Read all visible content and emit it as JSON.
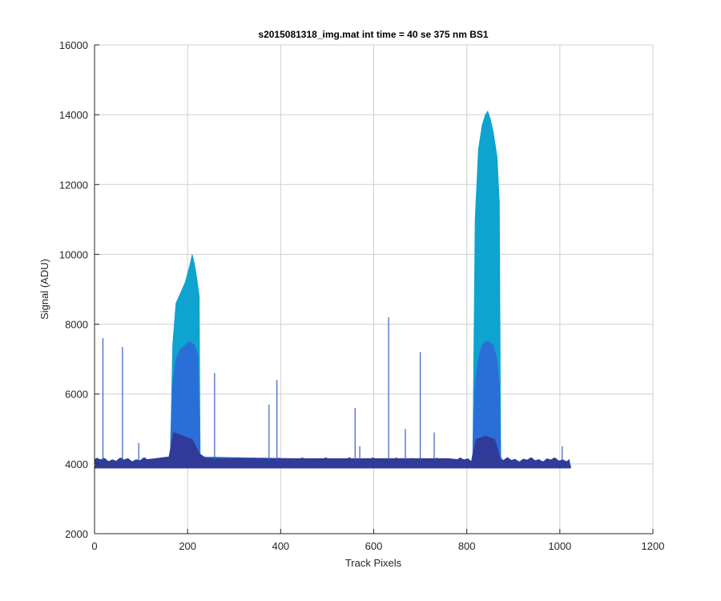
{
  "chart_data": {
    "type": "line",
    "title": "s2015081318_img.mat int time = 40 se  375 nm BS1",
    "xlabel": "Track Pixels",
    "ylabel": "Signal (ADU)",
    "xlim": [
      0,
      1200
    ],
    "ylim": [
      2000,
      16000
    ],
    "xticks": [
      0,
      200,
      400,
      600,
      800,
      1000,
      1200
    ],
    "yticks": [
      2000,
      4000,
      6000,
      8000,
      10000,
      12000,
      14000,
      16000
    ],
    "grid": true,
    "colors": {
      "upper": "#0fa3cf",
      "middle": "#2a6fd8",
      "lower": "#2f3a9a",
      "base": "#303c96"
    },
    "series": [
      {
        "color": "#0fa3cf",
        "x": [
          0,
          160,
          163,
          168,
          175,
          185,
          195,
          205,
          210,
          215,
          220,
          225,
          227,
          240,
          800,
          810,
          813,
          818,
          825,
          833,
          840,
          845,
          850,
          857,
          865,
          870,
          873,
          880,
          1023
        ],
        "y": [
          3950,
          4050,
          4300,
          7400,
          8600,
          8900,
          9200,
          9700,
          10000,
          9700,
          9300,
          8800,
          4200,
          4100,
          4100,
          4050,
          4300,
          11000,
          13000,
          13700,
          14000,
          14100,
          13900,
          13500,
          12800,
          11500,
          4200,
          4050,
          3950
        ]
      },
      {
        "color": "#2a6fd8",
        "x": [
          160,
          163,
          168,
          175,
          185,
          195,
          205,
          215,
          222,
          227,
          810,
          813,
          818,
          825,
          833,
          840,
          848,
          857,
          865,
          870,
          873
        ],
        "y": [
          4050,
          4300,
          6300,
          7000,
          7300,
          7400,
          7500,
          7400,
          7100,
          4200,
          4050,
          4300,
          6300,
          7000,
          7400,
          7500,
          7500,
          7400,
          7000,
          6200,
          4200
        ]
      },
      {
        "color": "#2f3a9a",
        "x": [
          0,
          50,
          100,
          160,
          170,
          190,
          210,
          225,
          240,
          400,
          600,
          760,
          800,
          810,
          820,
          840,
          860,
          873,
          880,
          1023
        ],
        "y": [
          3950,
          4000,
          4100,
          4200,
          4900,
          4800,
          4700,
          4300,
          4150,
          4150,
          4150,
          4150,
          4100,
          4050,
          4700,
          4800,
          4700,
          4100,
          4000,
          3950
        ]
      }
    ],
    "spikes": {
      "x": [
        18,
        60,
        95,
        258,
        375,
        392,
        560,
        570,
        632,
        668,
        700,
        730,
        1005
      ],
      "y": [
        7600,
        7350,
        4600,
        6600,
        5700,
        6400,
        5600,
        4500,
        8200,
        5000,
        7200,
        4900,
        4500
      ]
    }
  }
}
